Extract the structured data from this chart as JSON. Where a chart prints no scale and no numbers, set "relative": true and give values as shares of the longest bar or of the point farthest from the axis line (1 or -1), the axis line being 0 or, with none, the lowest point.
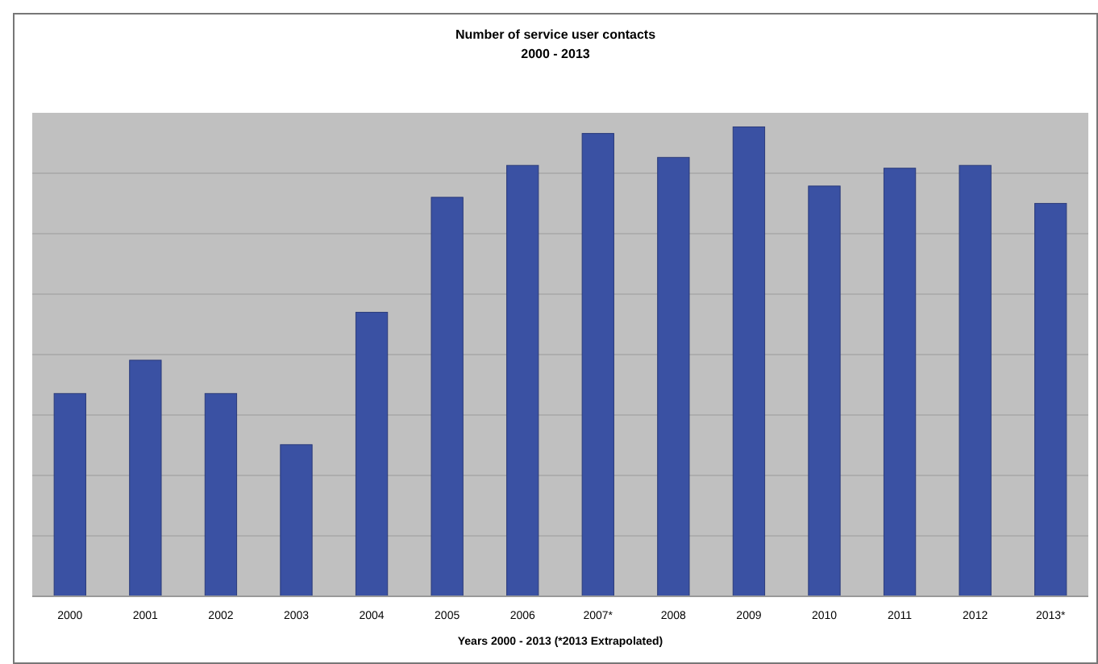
{
  "chart_data": {
    "type": "bar",
    "title": "Number of service user contacts",
    "subtitle": "2000 - 2013",
    "xlabel": "Years 2000 - 2013 (*2013 Extrapolated)",
    "categories": [
      "2000",
      "2001",
      "2002",
      "2003",
      "2004",
      "2005",
      "2006",
      "2007*",
      "2008",
      "2009",
      "2010",
      "2011",
      "2012",
      "2013*"
    ],
    "values": [
      0.432,
      0.503,
      0.432,
      0.323,
      0.605,
      0.85,
      0.918,
      0.986,
      0.935,
      1,
      0.874,
      0.912,
      0.918,
      0.837
    ],
    "color": "#3a51a3",
    "relative": true,
    "grid": "y"
  }
}
